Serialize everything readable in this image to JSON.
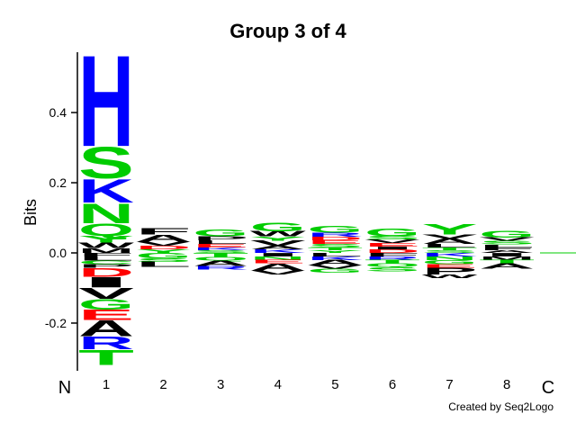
{
  "chart_data": {
    "type": "logo",
    "title": "Group 3 of 4",
    "y_label": "Bits",
    "x_start_label": "N",
    "x_end_label": "C",
    "credit": "Created by Seq2Logo",
    "ylim": [
      -0.336,
      0.572
    ],
    "yticks": [
      0.4,
      0.2,
      {
        "value": 0,
        "label": "0.0"
      },
      -0.2
    ],
    "categories": [
      "1",
      "2",
      "3",
      "4",
      "5",
      "6",
      "7",
      "8"
    ],
    "letter_colors": {
      "A": "#000000",
      "V": "#000000",
      "L": "#000000",
      "I": "#000000",
      "P": "#000000",
      "W": "#000000",
      "F": "#000000",
      "M": "#000000",
      "G": "#00cc00",
      "S": "#00cc00",
      "T": "#00cc00",
      "Y": "#00cc00",
      "C": "#00cc00",
      "Q": "#00cc00",
      "N": "#00cc00",
      "K": "#0000ff",
      "R": "#0000ff",
      "H": "#0000ff",
      "D": "#ff0000",
      "E": "#ff0000"
    },
    "positions": [
      {
        "letters": [
          "M",
          "W",
          "Y",
          "Q",
          "N",
          "K",
          "S",
          "H",
          "F",
          "L",
          "C",
          "P",
          "D",
          "I",
          "V",
          "G",
          "E",
          "A",
          "R",
          "T"
        ],
        "values": [
          0.014,
          0.015,
          0.02,
          0.036,
          0.059,
          0.069,
          0.092,
          0.267,
          -0.01,
          -0.012,
          -0.01,
          -0.01,
          -0.026,
          -0.03,
          -0.033,
          -0.03,
          -0.03,
          -0.046,
          -0.038,
          -0.044
        ]
      },
      {
        "letters": [
          "Y",
          "D",
          "V",
          "A",
          "F",
          "G",
          "S",
          "L"
        ],
        "values": [
          0.01,
          0.01,
          0.012,
          0.02,
          0.018,
          -0.015,
          -0.01,
          -0.015
        ]
      },
      {
        "letters": [
          "S",
          "K",
          "E",
          "L",
          "P",
          "G",
          "T",
          "Q",
          "A",
          "R"
        ],
        "values": [
          0.008,
          0.008,
          0.01,
          0.01,
          0.012,
          0.02,
          -0.012,
          -0.01,
          -0.015,
          -0.01
        ]
      },
      {
        "letters": [
          "K",
          "A",
          "V",
          "Y",
          "W",
          "G",
          "I",
          "N",
          "E",
          "A",
          "V"
        ],
        "values": [
          0.01,
          0.01,
          0.015,
          0.012,
          0.015,
          0.025,
          -0.01,
          -0.01,
          -0.01,
          -0.02,
          -0.012
        ]
      },
      {
        "letters": [
          "Y",
          "T",
          "S",
          "E",
          "D",
          "R",
          "G",
          "L",
          "K",
          "A",
          "V",
          "G"
        ],
        "values": [
          0.008,
          0.008,
          0.01,
          0.01,
          0.01,
          0.012,
          0.02,
          -0.01,
          -0.01,
          -0.015,
          -0.01,
          -0.012
        ]
      },
      {
        "letters": [
          "D",
          "I",
          "E",
          "V",
          "S",
          "G",
          "F",
          "R",
          "T",
          "Q",
          "S"
        ],
        "values": [
          0.01,
          0.008,
          0.01,
          0.01,
          0.01,
          0.022,
          -0.01,
          -0.01,
          -0.01,
          -0.01,
          -0.012
        ]
      },
      {
        "letters": [
          "S",
          "T",
          "L",
          "A",
          "V",
          "Y",
          "K",
          "N",
          "G",
          "E",
          "P",
          "W"
        ],
        "values": [
          0.008,
          0.008,
          0.01,
          0.015,
          0.012,
          0.03,
          -0.01,
          -0.01,
          -0.012,
          -0.01,
          -0.02,
          -0.01
        ]
      },
      {
        "letters": [
          "A",
          "F",
          "L",
          "S",
          "V",
          "G",
          "I",
          "M",
          "T",
          "A"
        ],
        "values": [
          0.008,
          0.008,
          0.008,
          0.01,
          0.01,
          0.02,
          -0.01,
          -0.01,
          -0.01,
          -0.015
        ]
      }
    ]
  }
}
